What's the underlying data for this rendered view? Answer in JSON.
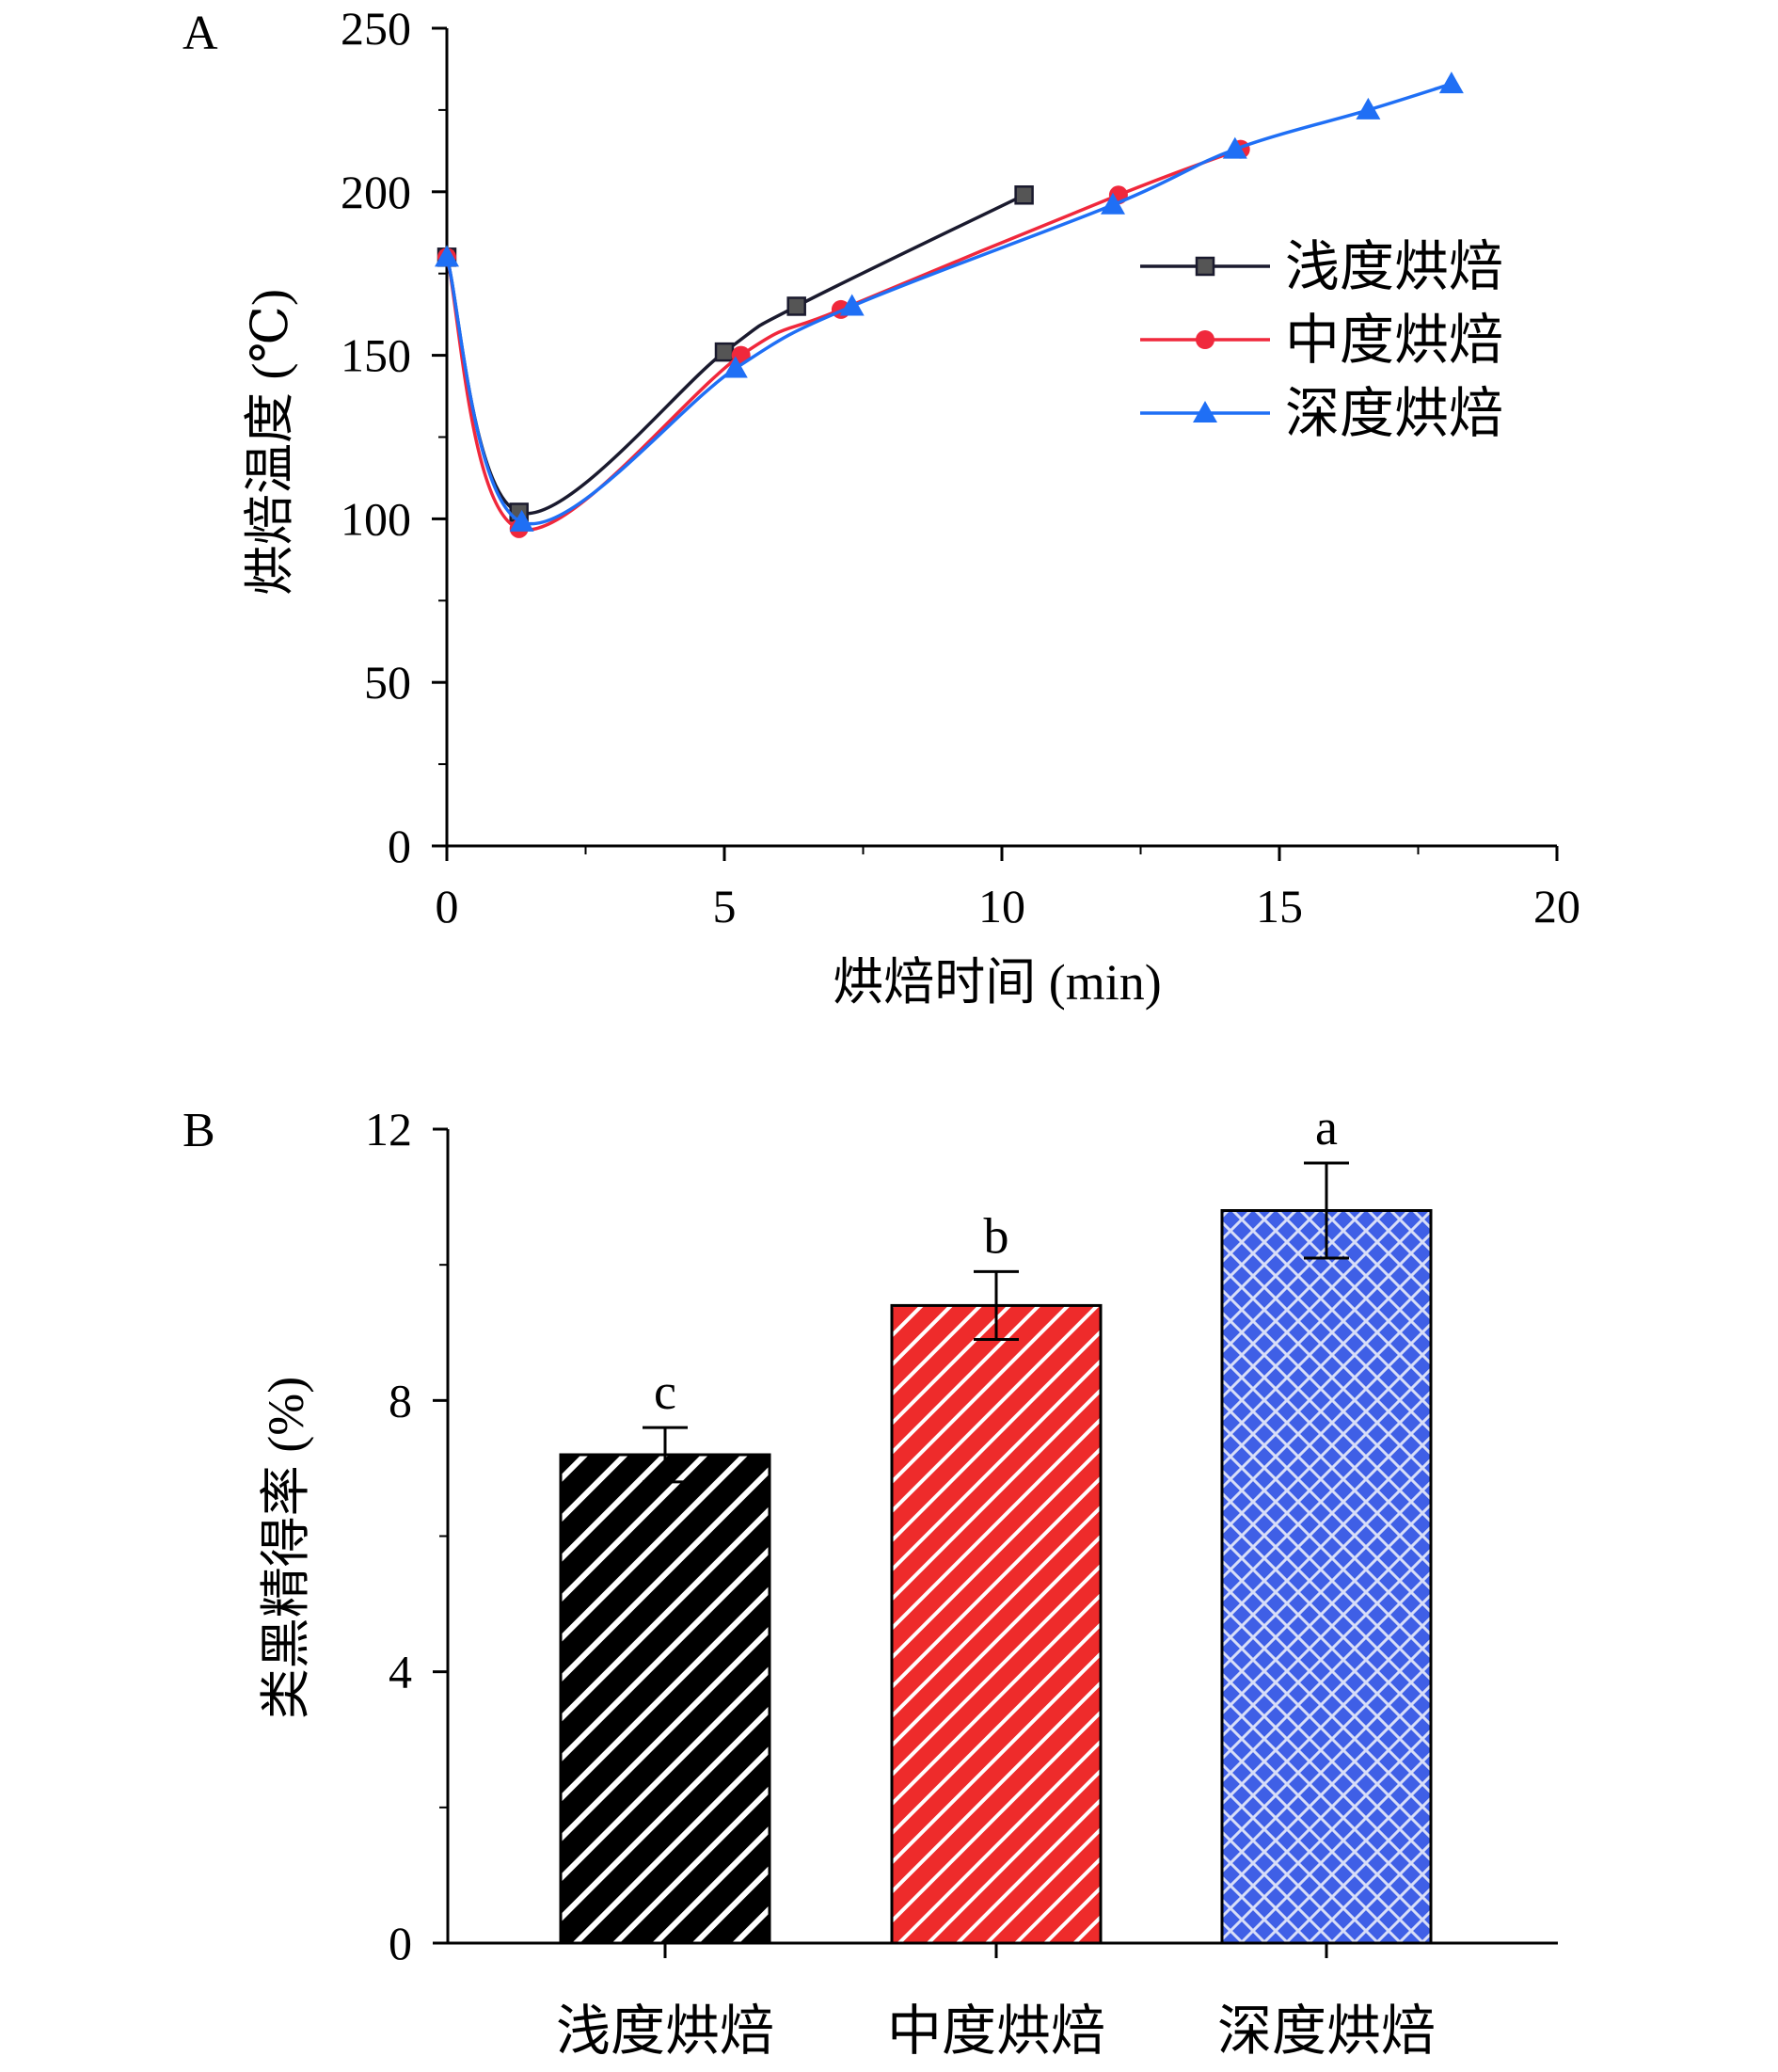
{
  "colors": {
    "light": "#1a1a2e",
    "medium": "#f0283c",
    "dark": "#1f6ff5",
    "bar_light": "#000000",
    "bar_medium": "#ee2b2b",
    "bar_dark": "#3f5fe6"
  },
  "chart_data": [
    {
      "panel": "A",
      "type": "line",
      "xlabel": "烘焙时间 (min)",
      "ylabel": "烘焙温度 (℃)",
      "xlim": [
        0,
        20
      ],
      "ylim": [
        0,
        250
      ],
      "xticks": [
        "0",
        "5",
        "10",
        "15",
        "20"
      ],
      "yticks": [
        "0",
        "50",
        "100",
        "150",
        "200",
        "250"
      ],
      "legend_position": "right",
      "series": [
        {
          "name": "浅度烘焙",
          "marker": "square",
          "x": [
            0,
            1.3,
            5.0,
            6.3,
            10.4
          ],
          "y": [
            180,
            102,
            151,
            165,
            199
          ]
        },
        {
          "name": "中度烘焙",
          "marker": "circle",
          "x": [
            0,
            1.3,
            5.3,
            7.1,
            12.1,
            14.3
          ],
          "y": [
            180,
            97,
            150,
            164,
            199,
            213
          ]
        },
        {
          "name": "深度烘焙",
          "marker": "triangle",
          "x": [
            0,
            1.35,
            5.2,
            7.3,
            12.0,
            14.2,
            16.6,
            18.1
          ],
          "y": [
            180,
            99,
            146,
            165,
            196,
            213,
            225,
            233
          ]
        }
      ]
    },
    {
      "panel": "B",
      "type": "bar",
      "ylabel": "类黑精得率 (%)",
      "ylim": [
        0,
        12
      ],
      "yticks": [
        "0",
        "4",
        "8",
        "12"
      ],
      "categories": [
        "浅度烘焙",
        "中度烘焙",
        "深度烘焙"
      ],
      "values": [
        7.2,
        9.4,
        10.8
      ],
      "errors": [
        0.4,
        0.5,
        0.7
      ],
      "significance": [
        "c",
        "b",
        "a"
      ]
    }
  ]
}
